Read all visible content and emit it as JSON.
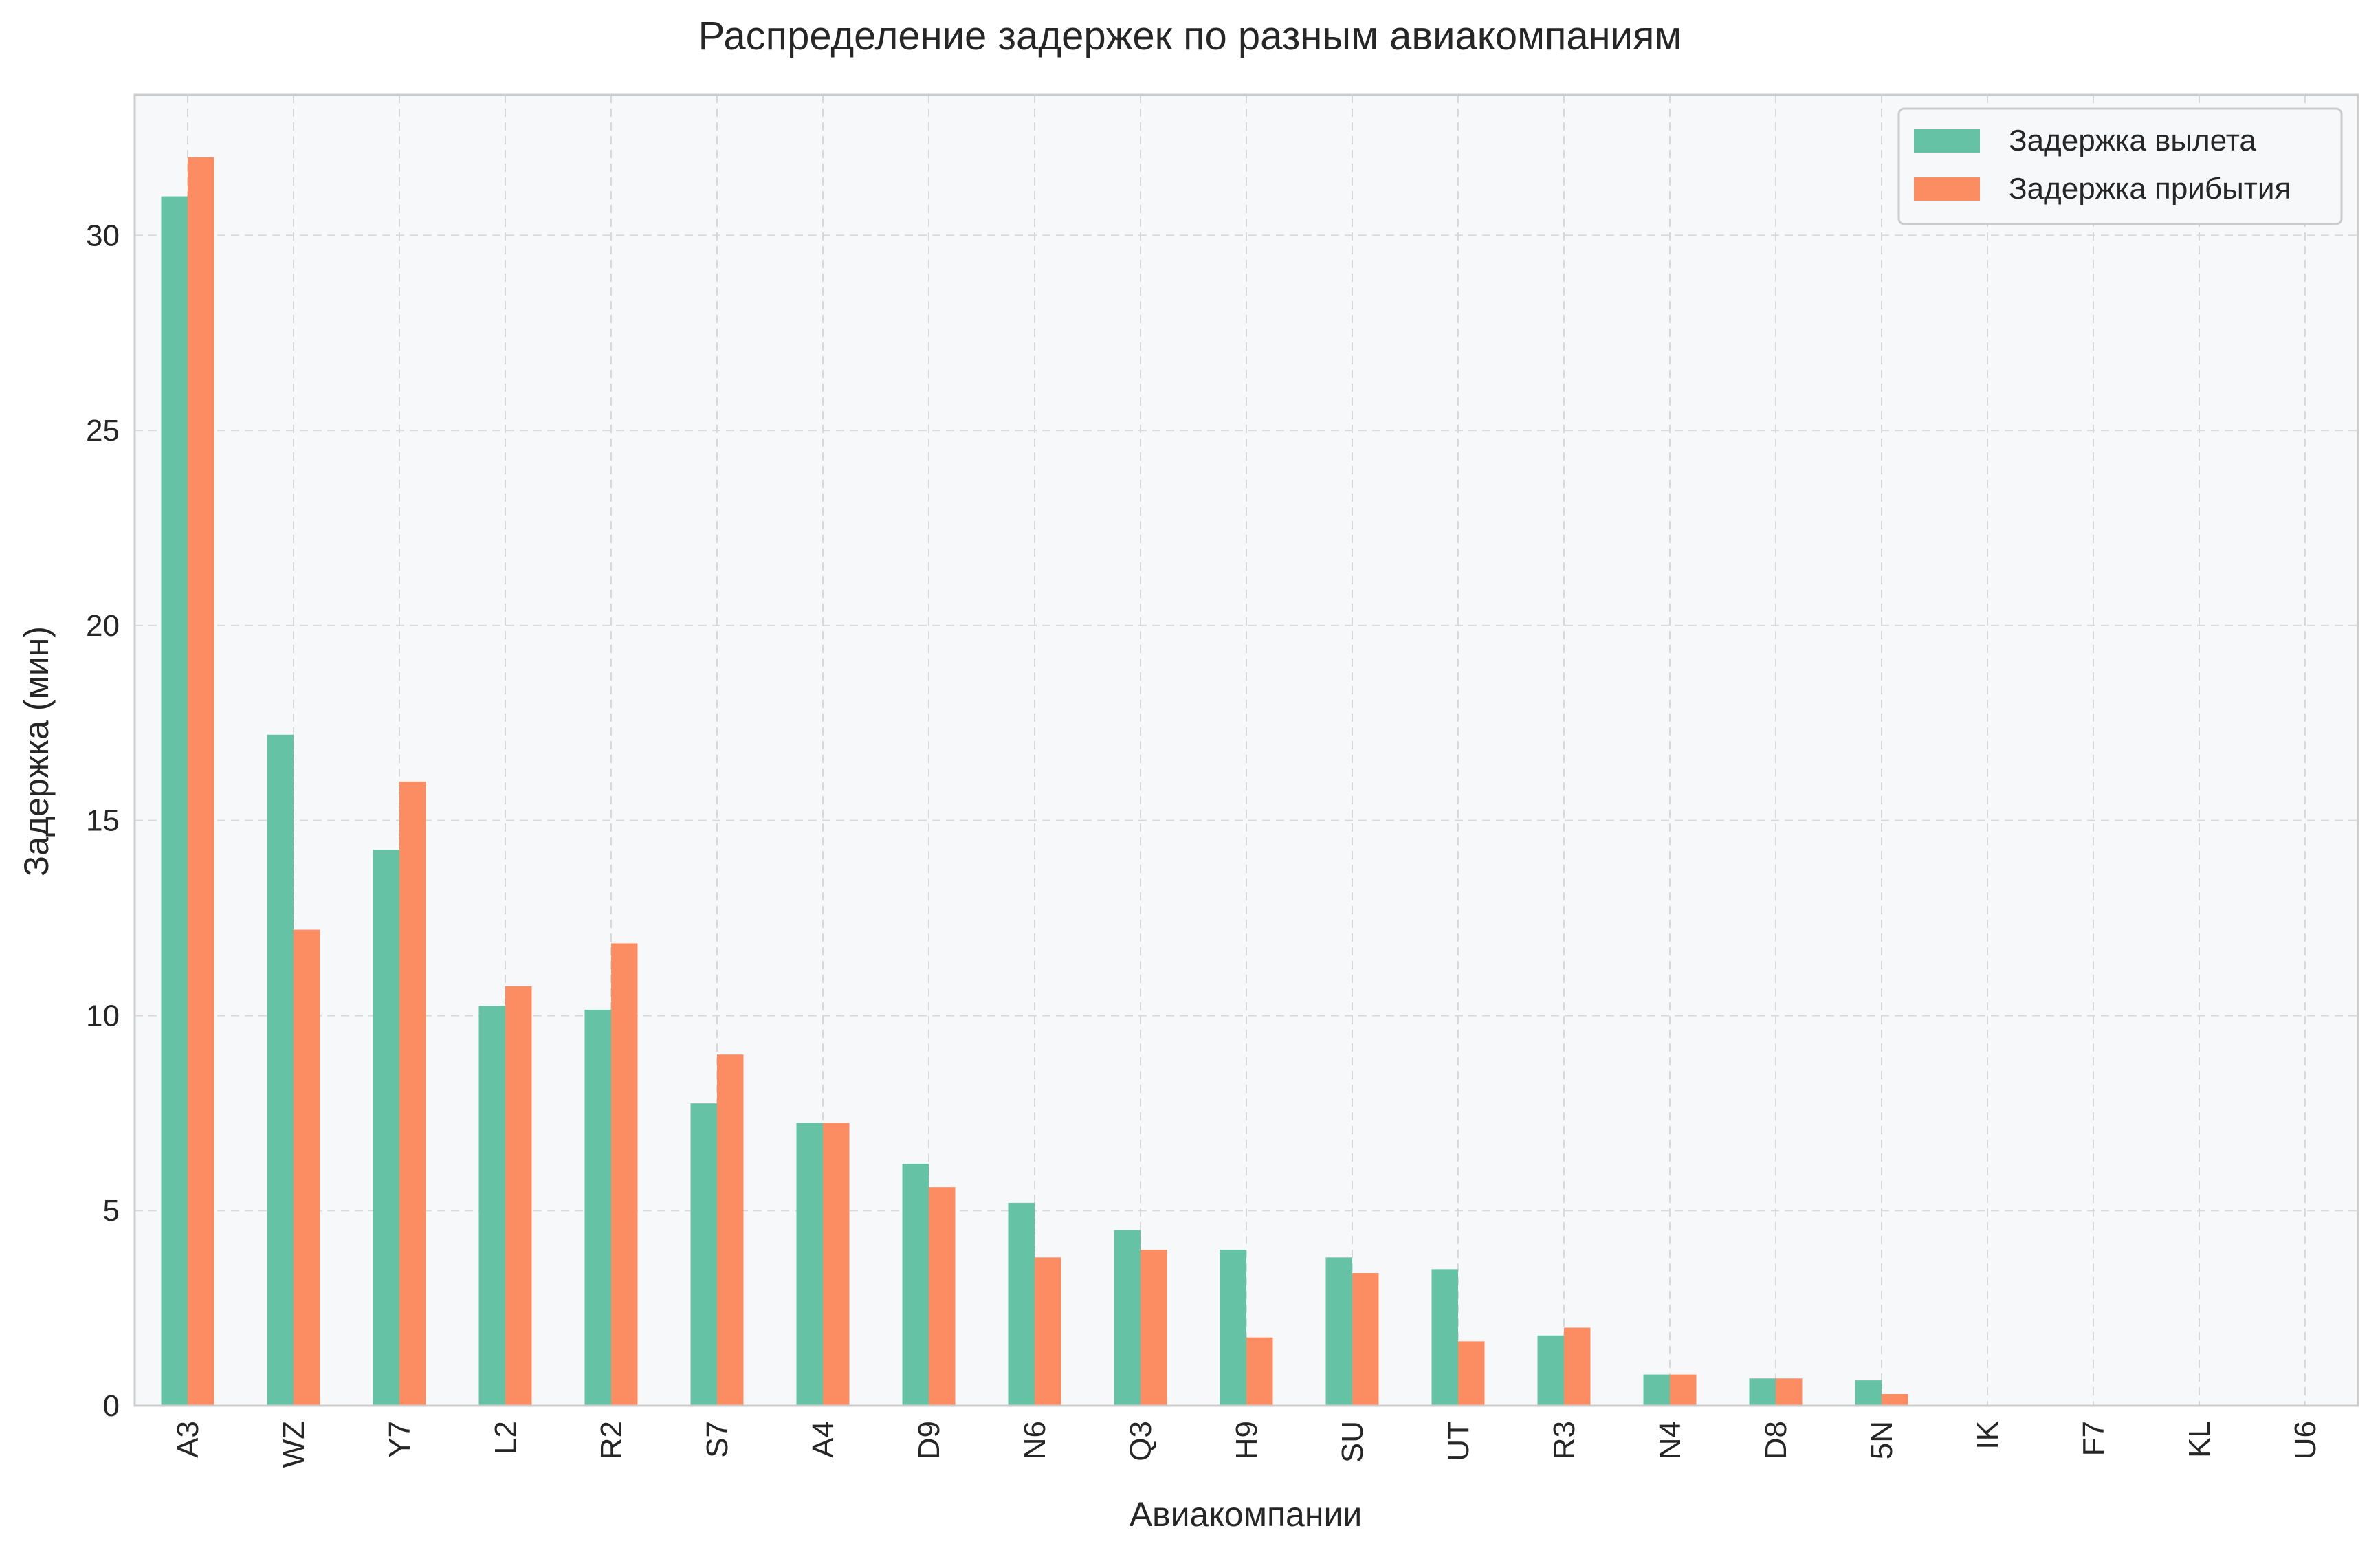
{
  "chart_data": {
    "type": "bar",
    "title": "Распределение задержек по разным авиакомпаниям",
    "xlabel": "Авиакомпании",
    "ylabel": "Задержка (мин)",
    "categories": [
      "A3",
      "WZ",
      "Y7",
      "L2",
      "R2",
      "S7",
      "A4",
      "D9",
      "N6",
      "Q3",
      "H9",
      "SU",
      "UT",
      "R3",
      "N4",
      "D8",
      "5N",
      "IK",
      "F7",
      "KL",
      "U6"
    ],
    "series": [
      {
        "name": "Задержка вылета",
        "color": "#66c2a5",
        "values": [
          31.0,
          17.2,
          14.25,
          10.25,
          10.15,
          7.75,
          7.25,
          6.2,
          5.2,
          4.5,
          4.0,
          3.8,
          3.5,
          1.8,
          0.8,
          0.7,
          0.65,
          0,
          0,
          0,
          0
        ]
      },
      {
        "name": "Задержка прибытия",
        "color": "#fc8d62",
        "values": [
          32.0,
          12.2,
          16.0,
          10.75,
          11.85,
          9.0,
          7.25,
          5.6,
          3.8,
          4.0,
          1.75,
          3.4,
          1.65,
          2.0,
          0.8,
          0.7,
          0.3,
          0,
          0,
          0,
          0
        ]
      }
    ],
    "ylim": [
      0,
      33.6
    ],
    "yticks": [
      0,
      5,
      10,
      15,
      20,
      25,
      30
    ],
    "grid": true,
    "legend_position": "top-right",
    "plot_background": "#f7f8fa",
    "grid_color": "#d9d9d9"
  }
}
